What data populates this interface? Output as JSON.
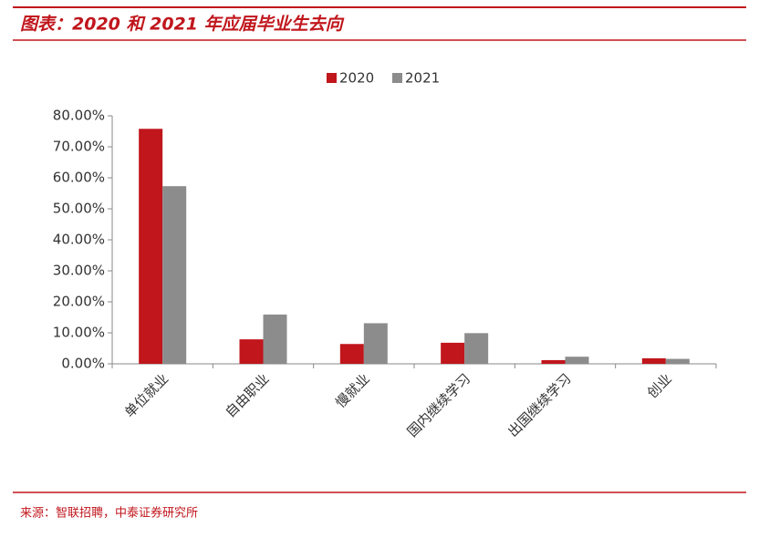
{
  "chart_data": {
    "type": "bar",
    "title": "图表：2020 和 2021 年应届毕业生去向",
    "source": "来源：智联招聘，中泰证券研究所",
    "categories": [
      "单位就业",
      "自由职业",
      "慢就业",
      "国内继续学习",
      "出国继续学习",
      "创业"
    ],
    "series": [
      {
        "name": "2020",
        "color": "#c0161c",
        "values": [
          75.8,
          7.9,
          6.4,
          6.8,
          1.2,
          1.8
        ]
      },
      {
        "name": "2021",
        "color": "#8c8c8c",
        "values": [
          57.3,
          15.9,
          13.1,
          9.9,
          2.3,
          1.6
        ]
      }
    ],
    "ylim": [
      0,
      80
    ],
    "yticks": [
      {
        "value": 0,
        "label": "0.00%"
      },
      {
        "value": 10,
        "label": "10.00%"
      },
      {
        "value": 20,
        "label": "20.00%"
      },
      {
        "value": 30,
        "label": "30.00%"
      },
      {
        "value": 40,
        "label": "40.00%"
      },
      {
        "value": 50,
        "label": "50.00%"
      },
      {
        "value": 60,
        "label": "60.00%"
      },
      {
        "value": 70,
        "label": "70.00%"
      },
      {
        "value": 80,
        "label": "80.00%"
      }
    ],
    "grid": false
  }
}
